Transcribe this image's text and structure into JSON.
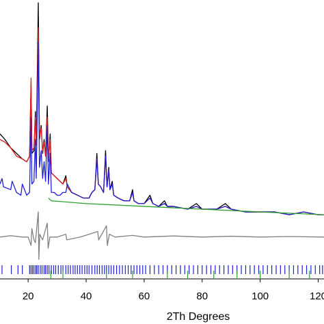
{
  "chart_data": {
    "type": "line",
    "xlabel": "2Th Degrees",
    "xlim": [
      10.3,
      122
    ],
    "xticks": [
      20,
      40,
      60,
      80,
      100,
      120
    ],
    "ylim": [
      0,
      100
    ],
    "series": [
      {
        "color": "#000000",
        "x": [
          10.3,
          12,
          14,
          16,
          18,
          19.5,
          20.5,
          21,
          21.3,
          22,
          22.5,
          22.8,
          23.5,
          23.9,
          24.5,
          25,
          25.5,
          26,
          26.6,
          27,
          27.6,
          28,
          29,
          30,
          31,
          32,
          33,
          33.5,
          35,
          37,
          39,
          41,
          42,
          43,
          43.7,
          44.2,
          45,
          46,
          46.7,
          47.2,
          47.8,
          48.2,
          49,
          49.5,
          51,
          53,
          55,
          56,
          56.5,
          58,
          60,
          62,
          63,
          65,
          67,
          68,
          70,
          75,
          78,
          80,
          85,
          88,
          90,
          95,
          100,
          105,
          110,
          115,
          120,
          122
        ],
        "values": [
          52,
          50,
          47,
          45,
          43,
          42,
          44,
          70,
          45,
          46,
          60,
          48,
          99,
          50,
          55,
          45,
          50,
          44,
          62,
          42,
          52,
          38,
          37,
          36,
          35,
          34,
          37,
          33,
          31,
          30,
          29,
          29,
          31,
          32,
          45,
          34,
          33,
          31,
          46,
          33,
          40,
          32,
          35,
          30,
          29,
          28,
          28,
          32,
          28,
          27,
          27,
          30,
          27,
          26,
          28,
          26,
          26,
          25,
          27,
          25,
          25,
          27,
          25,
          24,
          24,
          24,
          23,
          24,
          23,
          23
        ]
      },
      {
        "color": "#e41a1c",
        "x": [
          10.3,
          12,
          14,
          16,
          18,
          19.5,
          20.5,
          21,
          21.3,
          22,
          22.5,
          22.8,
          23.5,
          23.9,
          24.5,
          25,
          25.5,
          26,
          26.6,
          27,
          27.6,
          28,
          29,
          30,
          31,
          32,
          33,
          33.5,
          35,
          37,
          39,
          41,
          42,
          43,
          43.7,
          44.2,
          45,
          46,
          46.7,
          47.2,
          47.8,
          48.2,
          49,
          49.5,
          51,
          53,
          55,
          56,
          56.5,
          58,
          60,
          62,
          63,
          65,
          67,
          68,
          70,
          75,
          78,
          80,
          85,
          88,
          90,
          95,
          100,
          105,
          110,
          115,
          120,
          122
        ],
        "values": [
          50,
          49,
          47,
          44,
          43,
          42,
          44,
          72,
          46,
          47,
          58,
          48,
          90,
          51,
          54,
          46,
          49,
          44,
          58,
          43,
          50,
          38,
          37,
          36,
          35,
          34,
          36,
          33,
          31,
          30,
          29,
          29,
          31,
          32,
          43,
          34,
          33,
          31,
          44,
          33,
          39,
          32,
          34,
          30,
          29,
          28,
          28,
          31,
          28,
          27,
          27,
          29,
          27,
          26,
          27,
          26,
          26,
          25,
          26,
          25,
          25,
          26,
          25,
          24,
          24,
          24,
          23,
          24,
          23,
          23
        ]
      },
      {
        "color": "#1f1fd6",
        "x": [
          10.3,
          11,
          11.5,
          14,
          14.5,
          16,
          17.5,
          18,
          19.5,
          20.5,
          21,
          21.3,
          22,
          22.5,
          22.8,
          23.5,
          23.9,
          24.5,
          25,
          25.5,
          26,
          26.6,
          27,
          27.6,
          28,
          29,
          30,
          31,
          32,
          33,
          33.5,
          35,
          37,
          39,
          41,
          42,
          43,
          43.7,
          44.2,
          45,
          46,
          46.7,
          47.2,
          47.8,
          48.2,
          49,
          49.5,
          51,
          53,
          55,
          56,
          56.5,
          58,
          60,
          62,
          63,
          65,
          67,
          68,
          70,
          75,
          78,
          80,
          85,
          88,
          90,
          95,
          100,
          105,
          110,
          115,
          120,
          122
        ],
        "values": [
          34,
          36,
          33,
          32,
          35,
          31,
          30,
          34,
          30,
          31,
          58,
          34,
          35,
          50,
          36,
          85,
          40,
          46,
          36,
          42,
          35,
          55,
          34,
          45,
          31,
          31,
          30,
          30,
          31,
          31,
          34,
          31,
          30,
          29,
          29,
          31,
          32,
          43,
          34,
          33,
          31,
          44,
          33,
          39,
          32,
          34,
          30,
          29,
          28,
          28,
          31,
          28,
          27,
          27,
          29,
          27,
          26,
          27,
          26,
          26,
          25,
          26,
          25,
          25,
          26,
          25,
          24,
          24,
          24,
          23,
          24,
          23,
          23
        ]
      },
      {
        "color": "#2ca02c",
        "x": [
          27,
          28,
          40,
          60,
          80,
          100,
          122
        ],
        "values": [
          29,
          28,
          27,
          26,
          25,
          24,
          23
        ]
      },
      {
        "color": "#808080",
        "x": [
          10.3,
          14,
          18,
          20,
          21,
          21.3,
          22,
          22.5,
          23.5,
          23.7,
          24,
          25,
          26.6,
          26.9,
          27.5,
          30,
          33,
          33.3,
          38,
          44,
          44.3,
          47,
          47.3,
          48,
          50,
          56,
          60,
          70,
          80,
          90,
          100,
          110,
          122
        ],
        "values": [
          15,
          15.5,
          15,
          15,
          12,
          18,
          14,
          13,
          24,
          7,
          16,
          14,
          20,
          11,
          15,
          15,
          16,
          14,
          15,
          17,
          14,
          19,
          12,
          16,
          15,
          15.6,
          15,
          15.4,
          15,
          15.3,
          15,
          15.2,
          15
        ]
      }
    ],
    "bragg_ticks": [
      {
        "color": "#1f1fd6",
        "positions": [
          11,
          14.2,
          16.5,
          18,
          20.5,
          21,
          21.5,
          22,
          22.6,
          23,
          23.5,
          24.2,
          24.8,
          25.5,
          26,
          26.6,
          27.2,
          28,
          28.8,
          29.5,
          30.4,
          31.3,
          32,
          33,
          33.8,
          34.6,
          35.5,
          36.2,
          37,
          37.8,
          38.6,
          39.5,
          40.3,
          41,
          42,
          43,
          43.8,
          44.6,
          45.5,
          46.3,
          47,
          47.8,
          48.6,
          49.5,
          50.5,
          51.5,
          52.5,
          53.5,
          54.5,
          55.5,
          56.5,
          57.5,
          58.5,
          59.5,
          60.5,
          62,
          63.5,
          65,
          66.5,
          68,
          69.5,
          71,
          72.5,
          74,
          75.5,
          77,
          78.5,
          80,
          81.5,
          83,
          84.5,
          86,
          87.5,
          89,
          90.5,
          92,
          93.5,
          95,
          96.5,
          98,
          99.5,
          101,
          102.5,
          104,
          105.5,
          107,
          108.5,
          110,
          111.5,
          113,
          114.5,
          116,
          117.5,
          119,
          120.5,
          121.5
        ]
      },
      {
        "color": "#2ca02c",
        "positions": [
          27.8,
          32,
          47,
          56,
          68,
          75,
          84,
          92,
          100,
          110,
          117
        ]
      }
    ]
  }
}
